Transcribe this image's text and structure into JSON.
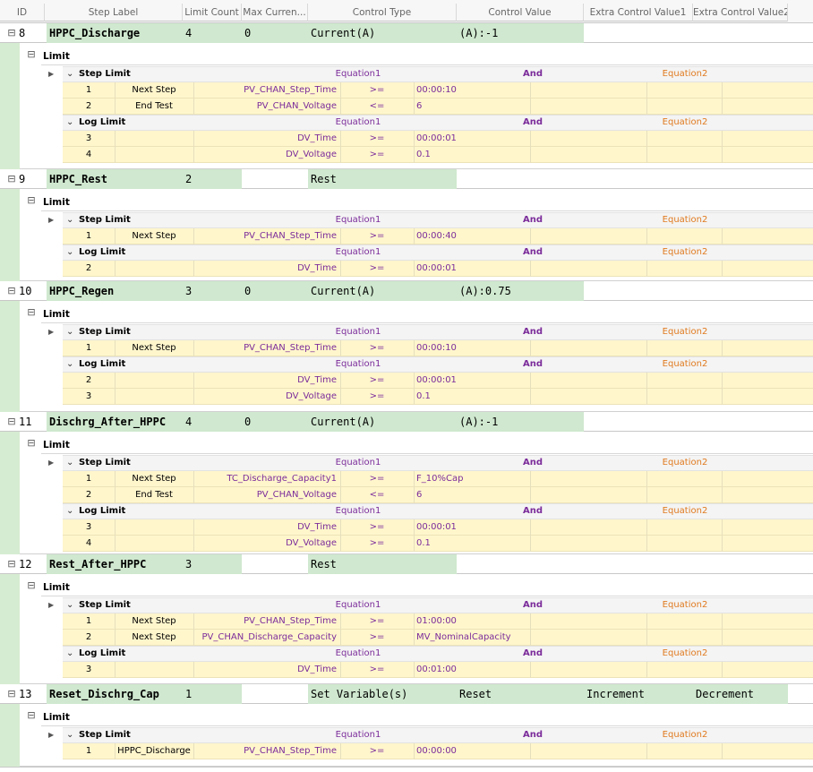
{
  "columns": [
    "ID",
    "Step Label",
    "Limit Count",
    "Max Curren...",
    "Control Type",
    "Control Value",
    "Extra Control Value1",
    "Extra Control Value2"
  ],
  "limit_caption": "Limit",
  "sub_headers": {
    "step_limit": "Step Limit",
    "log_limit": "Log Limit",
    "equation1": "Equation1",
    "and": "And",
    "equation2": "Equation2"
  },
  "steps": [
    {
      "id": "8",
      "label": "HPPC_Discharge",
      "limit_count": "4",
      "max_current": "0",
      "control_type": "Current(A)",
      "control_value": "(A):-1",
      "extra1": "",
      "extra2": "",
      "step_limits": [
        {
          "num": "1",
          "action": "Next Step",
          "var": "PV_CHAN_Step_Time",
          "op": ">=",
          "value": "00:00:10"
        },
        {
          "num": "2",
          "action": "End Test",
          "var": "PV_CHAN_Voltage",
          "op": "<=",
          "value": "6"
        }
      ],
      "log_limits": [
        {
          "num": "3",
          "action": "",
          "var": "DV_Time",
          "op": ">=",
          "value": "00:00:01"
        },
        {
          "num": "4",
          "action": "",
          "var": "DV_Voltage",
          "op": ">=",
          "value": "0.1"
        }
      ]
    },
    {
      "id": "9",
      "label": "HPPC_Rest",
      "limit_count": "2",
      "max_current": "",
      "control_type": "Rest",
      "control_value": "",
      "extra1": "",
      "extra2": "",
      "step_limits": [
        {
          "num": "1",
          "action": "Next Step",
          "var": "PV_CHAN_Step_Time",
          "op": ">=",
          "value": "00:00:40"
        }
      ],
      "log_limits": [
        {
          "num": "2",
          "action": "",
          "var": "DV_Time",
          "op": ">=",
          "value": "00:00:01"
        }
      ]
    },
    {
      "id": "10",
      "label": "HPPC_Regen",
      "limit_count": "3",
      "max_current": "0",
      "control_type": "Current(A)",
      "control_value": "(A):0.75",
      "extra1": "",
      "extra2": "",
      "step_limits": [
        {
          "num": "1",
          "action": "Next Step",
          "var": "PV_CHAN_Step_Time",
          "op": ">=",
          "value": "00:00:10"
        }
      ],
      "log_limits": [
        {
          "num": "2",
          "action": "",
          "var": "DV_Time",
          "op": ">=",
          "value": "00:00:01"
        },
        {
          "num": "3",
          "action": "",
          "var": "DV_Voltage",
          "op": ">=",
          "value": "0.1"
        }
      ]
    },
    {
      "id": "11",
      "label": "Dischrg_After_HPPC",
      "limit_count": "4",
      "max_current": "0",
      "control_type": "Current(A)",
      "control_value": "(A):-1",
      "extra1": "",
      "extra2": "",
      "step_limits": [
        {
          "num": "1",
          "action": "Next Step",
          "var": "TC_Discharge_Capacity1",
          "op": ">=",
          "value": "F_10%Cap"
        },
        {
          "num": "2",
          "action": "End Test",
          "var": "PV_CHAN_Voltage",
          "op": "<=",
          "value": "6"
        }
      ],
      "log_limits": [
        {
          "num": "3",
          "action": "",
          "var": "DV_Time",
          "op": ">=",
          "value": "00:00:01"
        },
        {
          "num": "4",
          "action": "",
          "var": "DV_Voltage",
          "op": ">=",
          "value": "0.1"
        }
      ]
    },
    {
      "id": "12",
      "label": "Rest_After_HPPC",
      "limit_count": "3",
      "max_current": "",
      "control_type": "Rest",
      "control_value": "",
      "extra1": "",
      "extra2": "",
      "step_limits": [
        {
          "num": "1",
          "action": "Next Step",
          "var": "PV_CHAN_Step_Time",
          "op": ">=",
          "value": "01:00:00"
        },
        {
          "num": "2",
          "action": "Next Step",
          "var": "PV_CHAN_Discharge_Capacity",
          "op": ">=",
          "value": "MV_NominalCapacity"
        }
      ],
      "log_limits": [
        {
          "num": "3",
          "action": "",
          "var": "DV_Time",
          "op": ">=",
          "value": "00:01:00"
        }
      ]
    },
    {
      "id": "13",
      "label": "Reset_Dischrg_Cap",
      "limit_count": "1",
      "max_current": "",
      "control_type": "Set Variable(s)",
      "control_value": "Reset",
      "extra1": "Increment",
      "extra2": "Decrement",
      "step_limits": [
        {
          "num": "1",
          "action": "HPPC_Discharge",
          "var": "PV_CHAN_Step_Time",
          "op": ">=",
          "value": "00:00:00"
        }
      ],
      "log_limits": []
    }
  ]
}
